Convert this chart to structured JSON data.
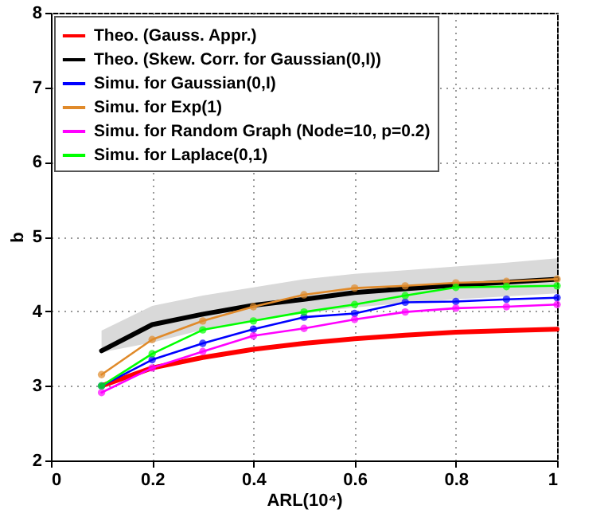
{
  "chart_data": {
    "type": "line",
    "xlabel": "ARL(10⁴)",
    "ylabel": "b",
    "x": [
      0.1,
      0.2,
      0.3,
      0.4,
      0.5,
      0.6,
      0.7,
      0.8,
      0.9,
      1.0
    ],
    "xlim": [
      0,
      1
    ],
    "xticks": [
      0,
      0.2,
      0.4,
      0.6,
      0.8,
      1
    ],
    "ylim": [
      2,
      8
    ],
    "yticks": [
      2,
      3,
      4,
      5,
      6,
      7,
      8
    ],
    "grid": true,
    "legend": "top left",
    "series": [
      {
        "name": "Theo. (Gauss. Appr.)",
        "color": "#ff0000",
        "marker": "none",
        "values": [
          3.0,
          3.24,
          3.38,
          3.49,
          3.57,
          3.63,
          3.68,
          3.72,
          3.74,
          3.76
        ]
      },
      {
        "name": "Theo. (Skew. Corr. for Gaussian(0,I))",
        "color": "#000000",
        "marker": "none",
        "values": [
          3.47,
          3.82,
          3.96,
          4.08,
          4.16,
          4.25,
          4.3,
          4.35,
          4.39,
          4.43
        ],
        "lower": [
          3.45,
          3.58,
          3.75,
          3.88,
          3.97,
          4.05,
          4.11,
          4.16,
          4.2,
          4.24
        ],
        "upper": [
          3.74,
          4.07,
          4.21,
          4.32,
          4.43,
          4.5,
          4.55,
          4.6,
          4.65,
          4.71
        ]
      },
      {
        "name": "Simu. for Gaussian(0,I)",
        "color": "#0000ff",
        "marker": "circle",
        "values": [
          3.0,
          3.35,
          3.57,
          3.76,
          3.92,
          3.97,
          4.12,
          4.13,
          4.16,
          4.18
        ]
      },
      {
        "name": "Simu. for Exp(1)",
        "color": "#e08a2a",
        "marker": "circle",
        "values": [
          3.15,
          3.62,
          3.87,
          4.06,
          4.22,
          4.31,
          4.34,
          4.38,
          4.4,
          4.43
        ]
      },
      {
        "name": "Simu. for Random Graph (Node=10, p=0.2)",
        "color": "#ff00ff",
        "marker": "circle",
        "values": [
          2.91,
          3.24,
          3.46,
          3.67,
          3.77,
          3.89,
          3.99,
          4.04,
          4.06,
          4.09
        ]
      },
      {
        "name": "Simu. for Laplace(0,1)",
        "color": "#00ff00",
        "marker": "circle",
        "values": [
          3.0,
          3.43,
          3.75,
          3.87,
          3.99,
          4.09,
          4.21,
          4.32,
          4.33,
          4.34
        ]
      }
    ]
  }
}
